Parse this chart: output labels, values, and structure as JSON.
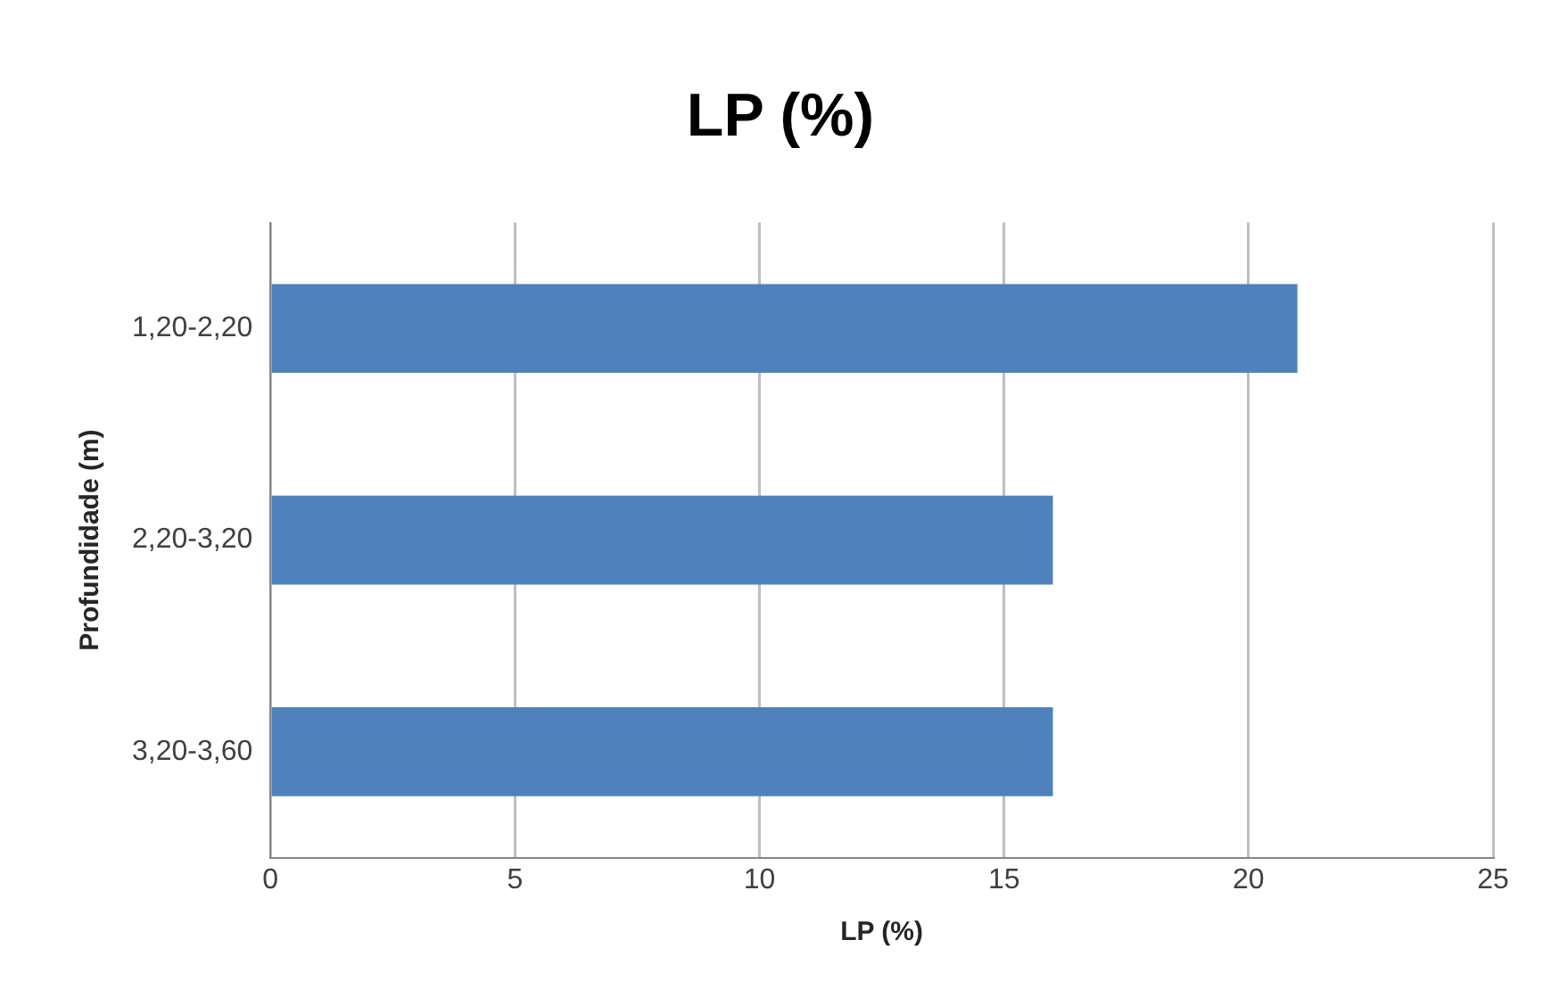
{
  "chart_data": {
    "type": "bar",
    "orientation": "horizontal",
    "title": "LP (%)",
    "xlabel": "LP (%)",
    "ylabel": "Profundidade (m)",
    "categories": [
      "1,20-2,20",
      "2,20-3,20",
      "3,20-3,60"
    ],
    "values": [
      21,
      16,
      16
    ],
    "color": "#4f81bd",
    "xlim": [
      0,
      25
    ],
    "xticks": [
      0,
      5,
      10,
      15,
      20,
      25
    ],
    "grid": "x",
    "legend": false
  }
}
